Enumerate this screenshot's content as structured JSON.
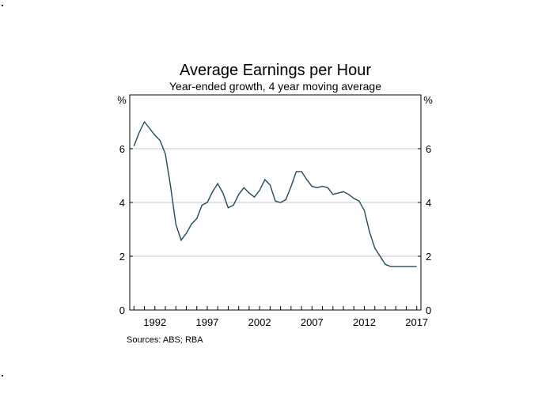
{
  "chart_data": {
    "type": "line",
    "title": "Average Earnings per Hour",
    "subtitle": "Year-ended growth, 4 year moving average",
    "y_unit_left": "%",
    "y_unit_right": "%",
    "source": "Sources: ABS; RBA",
    "xlim": [
      1989.6,
      2017.4
    ],
    "ylim": [
      0,
      8
    ],
    "yticks": [
      0,
      2,
      4,
      6
    ],
    "xtick_labels": [
      "1992",
      "1997",
      "2002",
      "2007",
      "2012",
      "2017"
    ],
    "xtick_values": [
      1992,
      1997,
      2002,
      2007,
      2012,
      2017
    ],
    "grid": true,
    "line_color": "#1f4a5c",
    "series": [
      {
        "x": [
          1990.0,
          1990.5,
          1991.0,
          1991.5,
          1992.0,
          1992.5,
          1993.0,
          1993.5,
          1994.0,
          1994.5,
          1995.0,
          1995.5,
          1996.0,
          1996.5,
          1997.0,
          1997.5,
          1998.0,
          1998.5,
          1999.0,
          1999.5,
          2000.0,
          2000.5,
          2001.0,
          2001.5,
          2002.0,
          2002.5,
          2003.0,
          2003.5,
          2004.0,
          2004.5,
          2005.0,
          2005.5,
          2006.0,
          2006.5,
          2007.0,
          2007.5,
          2008.0,
          2008.5,
          2009.0,
          2009.5,
          2010.0,
          2010.5,
          2011.0,
          2011.5,
          2012.0,
          2012.5,
          2013.0,
          2013.5,
          2014.0,
          2014.5,
          2015.0,
          2015.5,
          2016.0,
          2016.5,
          2017.0
        ],
        "values": [
          6.1,
          6.6,
          7.0,
          6.75,
          6.5,
          6.3,
          5.8,
          4.6,
          3.2,
          2.6,
          2.85,
          3.2,
          3.4,
          3.9,
          4.0,
          4.4,
          4.7,
          4.35,
          3.8,
          3.9,
          4.3,
          4.55,
          4.35,
          4.2,
          4.45,
          4.85,
          4.65,
          4.05,
          4.0,
          4.1,
          4.6,
          5.15,
          5.15,
          4.85,
          4.6,
          4.55,
          4.6,
          4.55,
          4.3,
          4.35,
          4.4,
          4.3,
          4.15,
          4.05,
          3.7,
          2.9,
          2.3,
          2.0,
          1.7,
          1.62,
          1.62,
          1.62,
          1.62,
          1.62,
          1.62
        ]
      }
    ]
  }
}
